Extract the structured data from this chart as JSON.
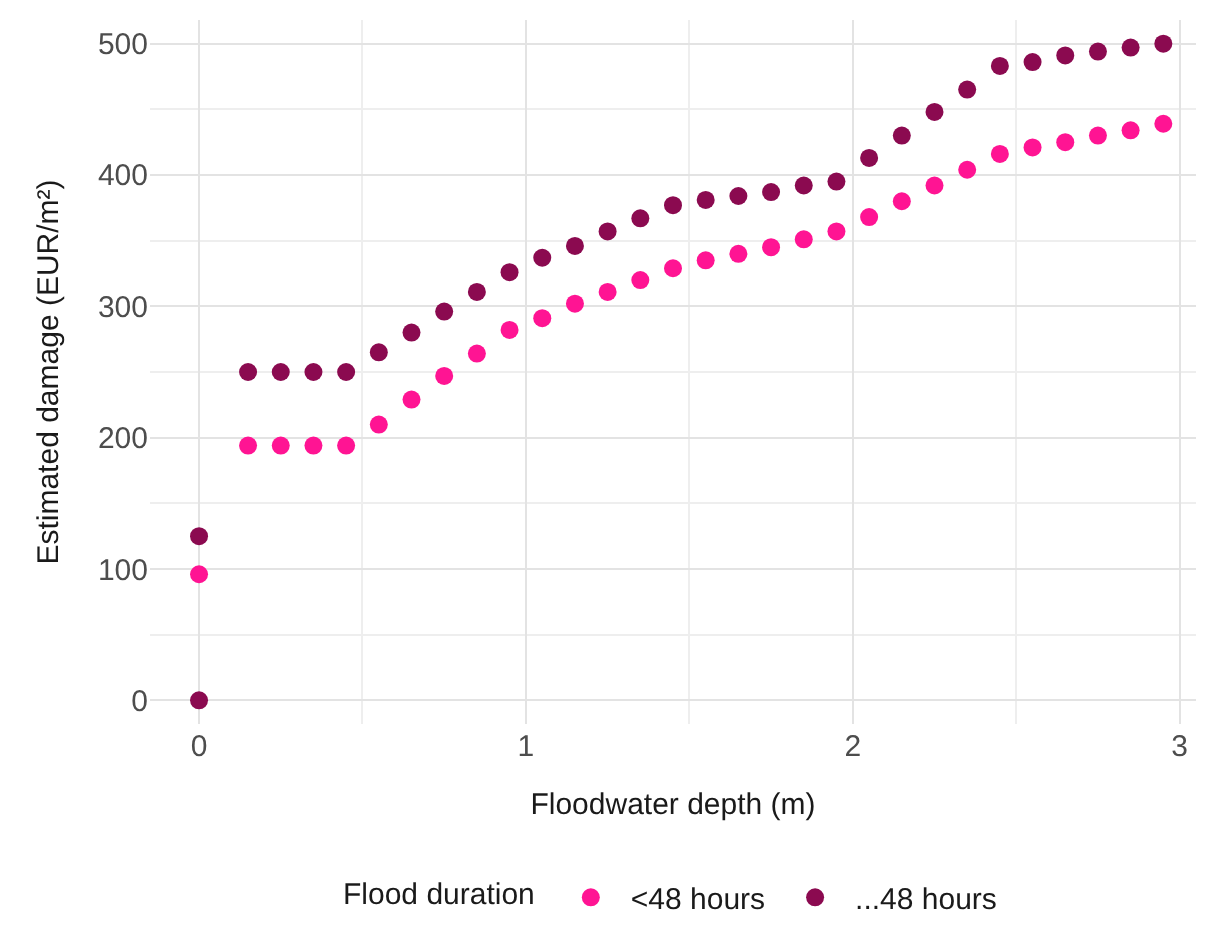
{
  "chart_data": {
    "type": "scatter",
    "xlabel": "Floodwater depth (m)",
    "ylabel": "Estimated damage (EUR/m²)",
    "legend_title": "Flood duration",
    "legend": "bottom",
    "grid": true,
    "marker": "circle",
    "xlim": [
      -0.15,
      3.05
    ],
    "xticks": [
      0,
      1,
      2,
      3
    ],
    "ylim": [
      -18,
      518
    ],
    "yticks": [
      0,
      100,
      200,
      300,
      400,
      500
    ],
    "series": [
      {
        "name": "<48 hours",
        "color": "#ff1493",
        "x": [
          0,
          0.15,
          0.25,
          0.35,
          0.45,
          0.55,
          0.65,
          0.75,
          0.85,
          0.95,
          1.05,
          1.15,
          1.25,
          1.35,
          1.45,
          1.55,
          1.65,
          1.75,
          1.85,
          1.95,
          2.05,
          2.15,
          2.25,
          2.35,
          2.45,
          2.55,
          2.65,
          2.75,
          2.85,
          2.95
        ],
        "values": [
          96,
          194,
          194,
          194,
          194,
          210,
          229,
          247,
          264,
          282,
          291,
          302,
          311,
          320,
          329,
          335,
          340,
          345,
          351,
          357,
          368,
          380,
          392,
          404,
          416,
          421,
          425,
          430,
          434,
          439
        ]
      },
      {
        "name": "...48 hours",
        "color": "#8b0a50",
        "x": [
          0,
          0,
          0.15,
          0.25,
          0.35,
          0.45,
          0.55,
          0.65,
          0.75,
          0.85,
          0.95,
          1.05,
          1.15,
          1.25,
          1.35,
          1.45,
          1.55,
          1.65,
          1.75,
          1.85,
          1.95,
          2.05,
          2.15,
          2.25,
          2.35,
          2.45,
          2.55,
          2.65,
          2.75,
          2.85,
          2.95
        ],
        "values": [
          0,
          125,
          250,
          250,
          250,
          250,
          265,
          280,
          296,
          311,
          326,
          337,
          346,
          357,
          367,
          377,
          381,
          384,
          387,
          392,
          395,
          413,
          430,
          448,
          465,
          483,
          486,
          491,
          494,
          497,
          500
        ]
      }
    ]
  }
}
